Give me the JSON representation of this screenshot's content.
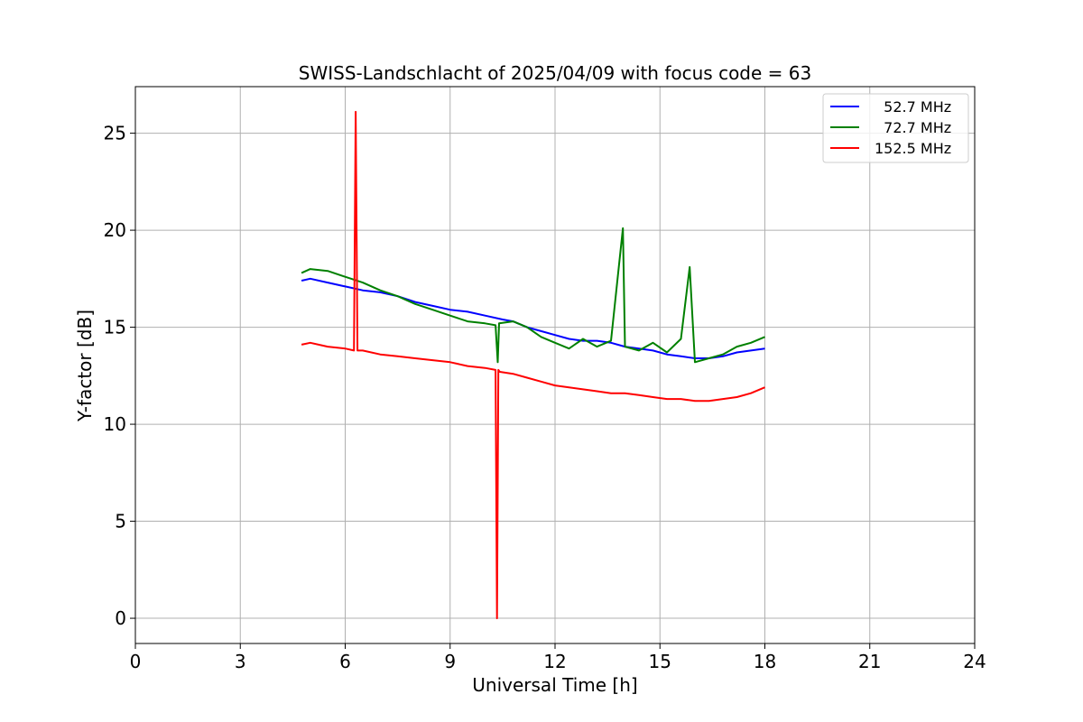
{
  "chart_data": {
    "type": "line",
    "title": "SWISS-Landschlacht of 2025/04/09 with focus code = 63",
    "xlabel": "Universal Time [h]",
    "ylabel": "Y-factor [dB]",
    "xlim": [
      0,
      24
    ],
    "ylim": [
      -1.3,
      27.4
    ],
    "xticks": [
      0,
      3,
      6,
      9,
      12,
      15,
      18,
      21,
      24
    ],
    "yticks": [
      0,
      5,
      10,
      15,
      20,
      25
    ],
    "grid": true,
    "legend_position": "top-right",
    "series": [
      {
        "name": "  52.7 MHz",
        "color": "#0000ff",
        "x": [
          4.75,
          5.0,
          5.5,
          6.0,
          6.5,
          7.0,
          7.5,
          8.0,
          8.5,
          9.0,
          9.5,
          10.0,
          10.5,
          10.8,
          11.2,
          11.6,
          12.0,
          12.4,
          12.8,
          13.2,
          13.6,
          14.0,
          14.4,
          14.8,
          15.2,
          15.6,
          16.0,
          16.4,
          16.8,
          17.2,
          17.6,
          18.0
        ],
        "y": [
          17.4,
          17.5,
          17.3,
          17.1,
          16.9,
          16.8,
          16.6,
          16.3,
          16.1,
          15.9,
          15.8,
          15.6,
          15.4,
          15.3,
          15.0,
          14.8,
          14.6,
          14.4,
          14.3,
          14.3,
          14.2,
          14.0,
          13.9,
          13.8,
          13.6,
          13.5,
          13.4,
          13.4,
          13.5,
          13.7,
          13.8,
          13.9
        ]
      },
      {
        "name": "  72.7 MHz",
        "color": "#008000",
        "x": [
          4.75,
          5.0,
          5.5,
          6.0,
          6.5,
          7.0,
          7.5,
          8.0,
          8.5,
          9.0,
          9.5,
          10.0,
          10.3,
          10.36,
          10.4,
          10.8,
          11.2,
          11.6,
          12.0,
          12.4,
          12.8,
          13.2,
          13.6,
          13.94,
          14.0,
          14.4,
          14.8,
          15.2,
          15.6,
          15.85,
          16.0,
          16.4,
          16.8,
          17.2,
          17.6,
          18.0
        ],
        "y": [
          17.8,
          18.0,
          17.9,
          17.6,
          17.3,
          16.9,
          16.6,
          16.2,
          15.9,
          15.6,
          15.3,
          15.2,
          15.1,
          13.2,
          15.2,
          15.3,
          15.0,
          14.5,
          14.2,
          13.9,
          14.4,
          14.0,
          14.3,
          20.1,
          14.0,
          13.8,
          14.2,
          13.7,
          14.4,
          18.1,
          13.2,
          13.4,
          13.6,
          14.0,
          14.2,
          14.5
        ]
      },
      {
        "name": "152.5 MHz",
        "color": "#ff0000",
        "x": [
          4.75,
          5.0,
          5.5,
          6.0,
          6.25,
          6.3,
          6.35,
          6.5,
          7.0,
          7.5,
          8.0,
          8.5,
          9.0,
          9.5,
          10.0,
          10.3,
          10.34,
          10.38,
          10.42,
          10.8,
          11.2,
          11.6,
          12.0,
          12.4,
          12.8,
          13.2,
          13.6,
          14.0,
          14.4,
          14.8,
          15.2,
          15.6,
          16.0,
          16.4,
          16.8,
          17.2,
          17.6,
          18.0
        ],
        "y": [
          14.1,
          14.2,
          14.0,
          13.9,
          13.8,
          26.1,
          13.8,
          13.8,
          13.6,
          13.5,
          13.4,
          13.3,
          13.2,
          13.0,
          12.9,
          12.8,
          0.0,
          12.8,
          12.7,
          12.6,
          12.4,
          12.2,
          12.0,
          11.9,
          11.8,
          11.7,
          11.6,
          11.6,
          11.5,
          11.4,
          11.3,
          11.3,
          11.2,
          11.2,
          11.3,
          11.4,
          11.6,
          11.9
        ]
      }
    ]
  }
}
